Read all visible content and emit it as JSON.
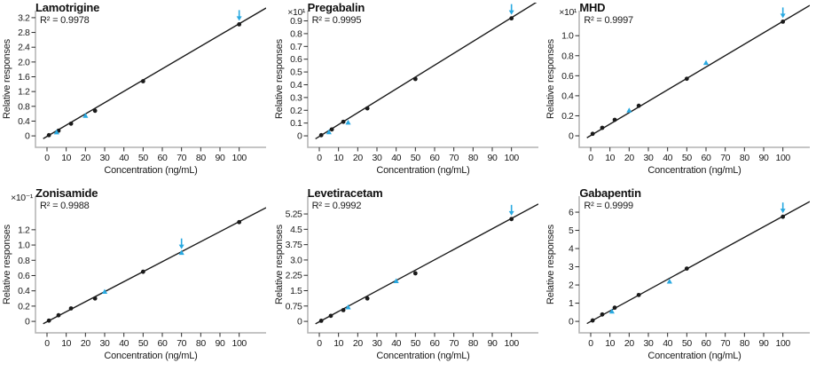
{
  "figure": {
    "description_x_label": "Concentration (ng/mL)",
    "description_y_label": "Relative responses"
  },
  "colors": {
    "accent_blue": "#29a9e1",
    "line_black": "#1a1a1a",
    "axis_gray": "#b2b2b2",
    "tick_black": "#2a2a2a",
    "text": "#111111"
  },
  "chart_data": [
    {
      "type": "scatter",
      "title": "Lamotrigine",
      "r2_label": "R² = 0.9978",
      "scale_label": "",
      "xlabel": "Concentration (ng/mL)",
      "ylabel": "Relative responses",
      "x_ticks": [
        0,
        10,
        20,
        30,
        40,
        50,
        60,
        70,
        80,
        90,
        100
      ],
      "xlim": [
        -6,
        114
      ],
      "ylim": [
        -0.31,
        3.39
      ],
      "y_tick_values": [
        0,
        0.4,
        0.8,
        1.2,
        1.6,
        2.0,
        2.4,
        2.8,
        3.2
      ],
      "y_tick_labels": [
        "0",
        "0.4",
        "0.8",
        "1.2",
        "1.6",
        "2.0",
        "2.4",
        "2.8",
        "3.2"
      ],
      "calibration_points": [
        [
          1,
          0.02
        ],
        [
          6,
          0.14
        ],
        [
          12.5,
          0.33
        ],
        [
          25,
          0.68
        ],
        [
          50,
          1.48
        ],
        [
          100,
          3.02
        ]
      ],
      "qc_points": [
        [
          5,
          0.1
        ],
        [
          20,
          0.55
        ]
      ],
      "arrow_point": [
        100,
        3.02
      ],
      "fit_line": {
        "slope": 0.0305,
        "intercept": -0.015
      }
    },
    {
      "type": "scatter",
      "title": "Pregabalin",
      "r2_label": "R² = 0.9995",
      "scale_label": "×10¹",
      "xlabel": "Concentration (ng/mL)",
      "ylabel": "Relative responses",
      "x_ticks": [
        0,
        10,
        20,
        30,
        40,
        50,
        60,
        70,
        80,
        90,
        100
      ],
      "xlim": [
        -6,
        114
      ],
      "ylim": [
        -0.09,
        0.98
      ],
      "y_tick_values": [
        0,
        0.1,
        0.2,
        0.3,
        0.4,
        0.5,
        0.6,
        0.7,
        0.8,
        0.9
      ],
      "y_tick_labels": [
        "0",
        "0.1",
        "0.2",
        "0.3",
        "0.4",
        "0.5",
        "0.6",
        "0.7",
        "0.8",
        "0.9"
      ],
      "calibration_points": [
        [
          1,
          0.005
        ],
        [
          6.5,
          0.05
        ],
        [
          12.5,
          0.11
        ],
        [
          25,
          0.215
        ],
        [
          50,
          0.445
        ],
        [
          100,
          0.92
        ]
      ],
      "qc_points": [
        [
          5,
          0.03
        ],
        [
          15,
          0.105
        ]
      ],
      "arrow_point": [
        100,
        0.92
      ],
      "fit_line": {
        "slope": 0.0093,
        "intercept": -0.005
      }
    },
    {
      "type": "scatter",
      "title": "MHD",
      "r2_label": "R² = 0.9997",
      "scale_label": "×10¹",
      "xlabel": "Concentration (ng/mL)",
      "ylabel": "Relative responses",
      "x_ticks": [
        0,
        10,
        20,
        30,
        40,
        50,
        60,
        70,
        80,
        90,
        100
      ],
      "xlim": [
        -6,
        114
      ],
      "ylim": [
        -0.115,
        1.25
      ],
      "y_tick_values": [
        0,
        0.2,
        0.4,
        0.6,
        0.8,
        1.0
      ],
      "y_tick_labels": [
        "0",
        "0.2",
        "0.4",
        "0.6",
        "0.8",
        "1.0"
      ],
      "calibration_points": [
        [
          1,
          0.02
        ],
        [
          6,
          0.08
        ],
        [
          12.5,
          0.16
        ],
        [
          25,
          0.3
        ],
        [
          50,
          0.57
        ],
        [
          100,
          1.14
        ]
      ],
      "qc_points": [
        [
          20,
          0.255
        ],
        [
          60,
          0.73
        ]
      ],
      "arrow_point": [
        100,
        1.14
      ],
      "fit_line": {
        "slope": 0.0114,
        "intercept": 0.003
      }
    },
    {
      "type": "scatter",
      "title": "Zonisamide",
      "r2_label": "R² = 0.9988",
      "scale_label": "×10⁻¹",
      "xlabel": "Concentration (ng/mL)",
      "ylabel": "Relative responses",
      "x_ticks": [
        0,
        10,
        20,
        30,
        40,
        50,
        60,
        70,
        80,
        90,
        100
      ],
      "xlim": [
        -6,
        114
      ],
      "ylim": [
        -0.15,
        1.64
      ],
      "y_tick_values": [
        0,
        0.2,
        0.4,
        0.6,
        0.8,
        1.0,
        1.2
      ],
      "y_tick_labels": [
        "0",
        "0.2",
        "0.4",
        "0.6",
        "0.8",
        "1.0",
        "1.2"
      ],
      "calibration_points": [
        [
          1,
          0.01
        ],
        [
          6,
          0.08
        ],
        [
          12.5,
          0.17
        ],
        [
          25,
          0.3
        ],
        [
          50,
          0.65
        ],
        [
          100,
          1.3
        ]
      ],
      "qc_points": [
        [
          30,
          0.39
        ],
        [
          70,
          0.9
        ]
      ],
      "arrow_point": [
        70,
        0.9
      ],
      "fit_line": {
        "slope": 0.0131,
        "intercept": -0.004
      }
    },
    {
      "type": "scatter",
      "title": "Levetiracetam",
      "r2_label": "R² = 0.9992",
      "scale_label": "",
      "xlabel": "Concentration (ng/mL)",
      "ylabel": "Relative responses",
      "x_ticks": [
        0,
        10,
        20,
        30,
        40,
        50,
        60,
        70,
        80,
        90,
        100
      ],
      "xlim": [
        -6,
        114
      ],
      "ylim": [
        -0.56,
        6.12
      ],
      "y_tick_values": [
        0,
        0.75,
        1.5,
        2.25,
        3.0,
        3.75,
        4.5,
        5.25
      ],
      "y_tick_labels": [
        "0",
        "0.75",
        "1.5",
        "2.25",
        "3.0",
        "3.75",
        "4.5",
        "5.25"
      ],
      "calibration_points": [
        [
          1,
          0.03
        ],
        [
          6,
          0.27
        ],
        [
          12.5,
          0.55
        ],
        [
          25,
          1.12
        ],
        [
          50,
          2.35
        ],
        [
          100,
          5.0
        ]
      ],
      "qc_points": [
        [
          15,
          0.7
        ],
        [
          40,
          1.98
        ]
      ],
      "arrow_point": [
        100,
        5.0
      ],
      "fit_line": {
        "slope": 0.0505,
        "intercept": -0.02
      }
    },
    {
      "type": "scatter",
      "title": "Gabapentin",
      "r2_label": "R² = 0.9999",
      "scale_label": "",
      "xlabel": "Concentration (ng/mL)",
      "ylabel": "Relative responses",
      "x_ticks": [
        0,
        10,
        20,
        30,
        40,
        50,
        60,
        70,
        80,
        90,
        100
      ],
      "xlim": [
        -6,
        114
      ],
      "ylim": [
        -0.63,
        6.88
      ],
      "y_tick_values": [
        0,
        1,
        2,
        3,
        4,
        5,
        6
      ],
      "y_tick_labels": [
        "0",
        "1",
        "2",
        "3",
        "4",
        "5",
        "6"
      ],
      "calibration_points": [
        [
          1,
          0.05
        ],
        [
          6,
          0.38
        ],
        [
          12.5,
          0.75
        ],
        [
          25,
          1.45
        ],
        [
          50,
          2.9
        ],
        [
          100,
          5.75
        ]
      ],
      "qc_points": [
        [
          11,
          0.55
        ],
        [
          41,
          2.2
        ]
      ],
      "arrow_point": [
        100,
        5.75
      ],
      "fit_line": {
        "slope": 0.0578,
        "intercept": -0.005
      }
    }
  ]
}
